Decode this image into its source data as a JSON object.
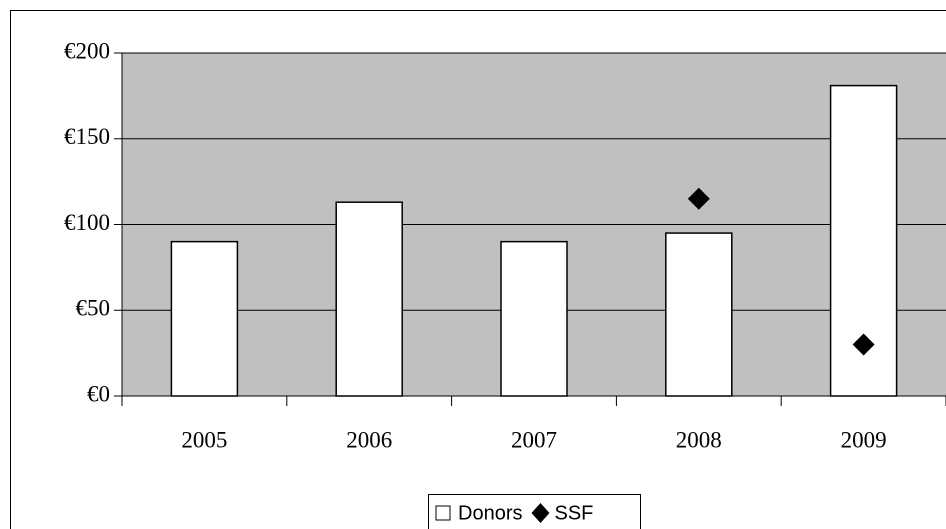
{
  "chart_data": {
    "type": "bar",
    "categories": [
      "2005",
      "2006",
      "2007",
      "2008",
      "2009"
    ],
    "series": [
      {
        "name": "Donors",
        "type": "bar",
        "color": "#ffffff",
        "values": [
          90,
          113,
          90,
          95,
          181
        ]
      },
      {
        "name": "SSF",
        "type": "scatter",
        "color": "#000000",
        "values": [
          null,
          null,
          null,
          115,
          30
        ]
      }
    ],
    "ylim": [
      0,
      200
    ],
    "yticks": [
      {
        "value": 0,
        "label": "€0"
      },
      {
        "value": 50,
        "label": "€50"
      },
      {
        "value": 100,
        "label": "€100"
      },
      {
        "value": 150,
        "label": "€150"
      },
      {
        "value": 200,
        "label": "€200"
      }
    ],
    "grid": true,
    "plot_background": "#c0c0c0",
    "legend": "bottom"
  }
}
